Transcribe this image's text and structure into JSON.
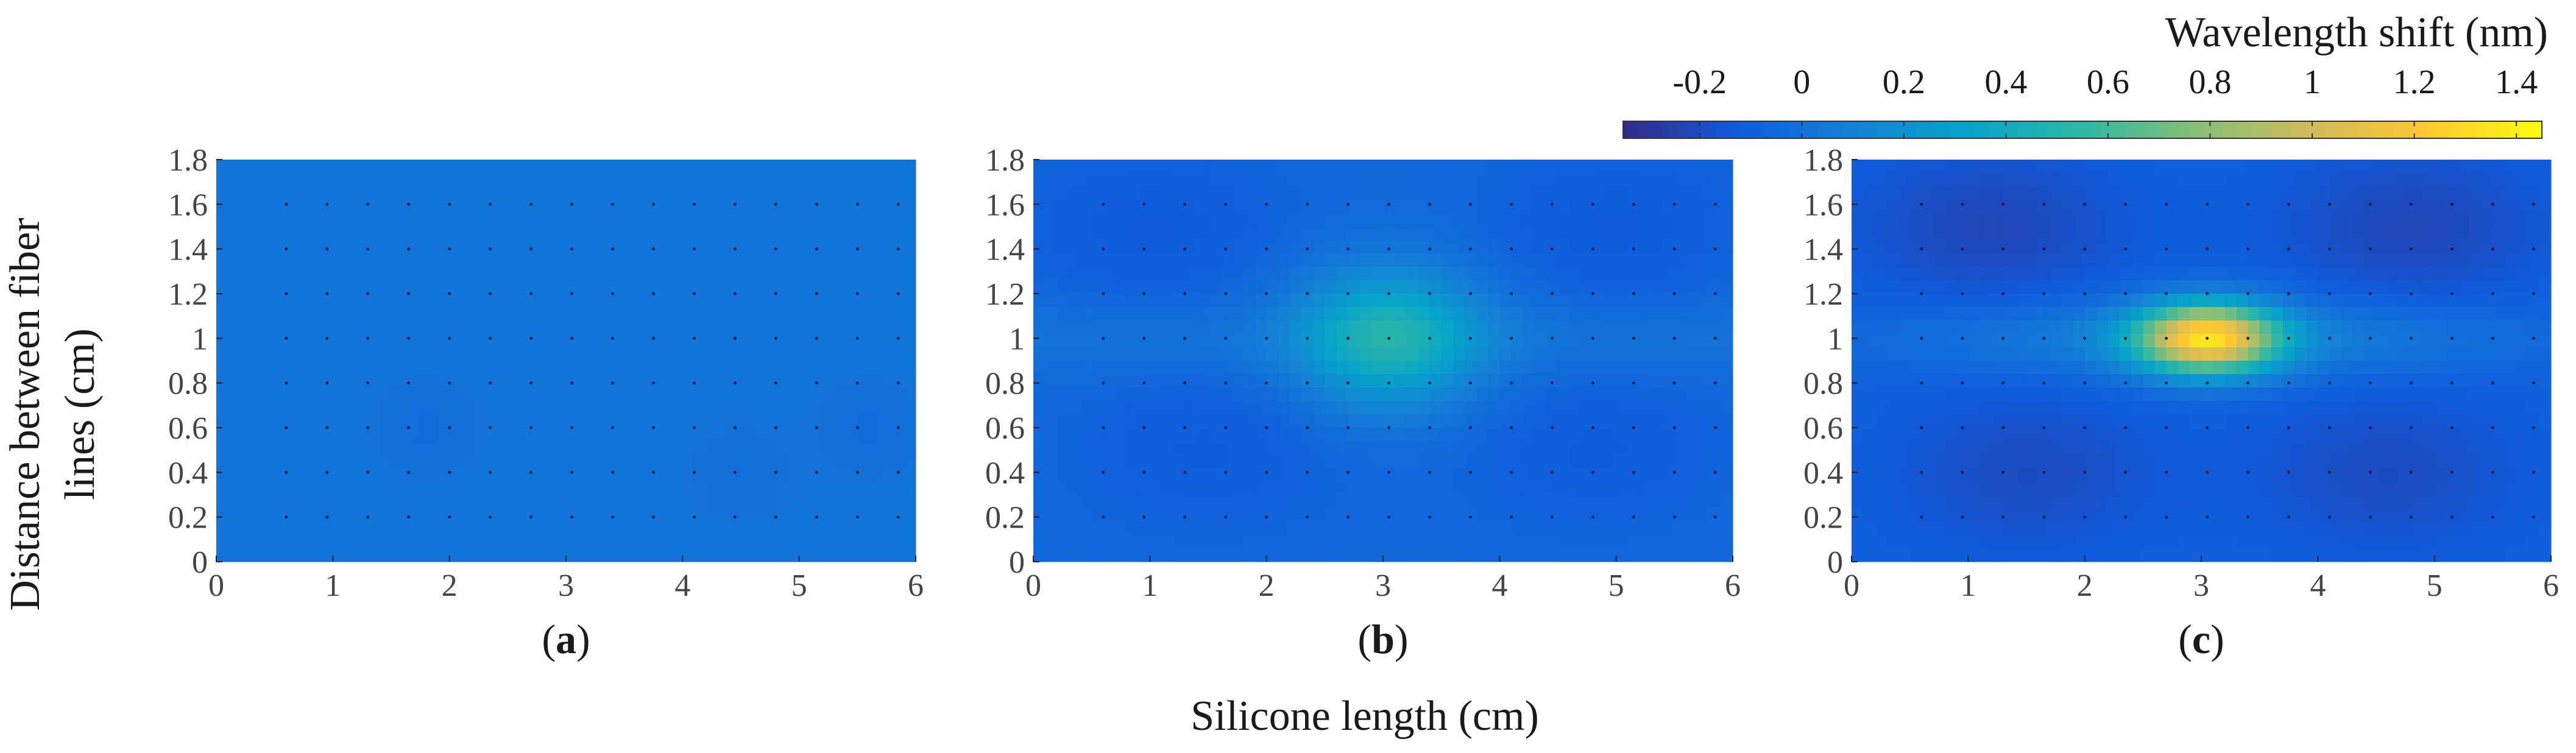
{
  "chart_data": {
    "type": "heatmap",
    "shared_xlabel": "Silicone length (cm)",
    "shared_ylabel": [
      "Distance between fiber",
      "lines (cm)"
    ],
    "colorbar": {
      "label": "Wavelength shift (nm)",
      "range": [
        -0.35,
        1.45
      ],
      "ticks": [
        -0.2,
        0,
        0.2,
        0.4,
        0.6,
        0.8,
        1,
        1.2,
        1.4
      ],
      "tick_labels": [
        "-0.2",
        "0",
        "0.2",
        "0.4",
        "0.6",
        "0.8",
        "1",
        "1.2",
        "1.4"
      ],
      "colormap": "parula",
      "stops": [
        "#352a87",
        "#0f5cdd",
        "#1481d6",
        "#06a4ca",
        "#2eb7a4",
        "#87bf77",
        "#d1bb59",
        "#fec832",
        "#f9fb0e"
      ]
    },
    "panels": [
      {
        "id": "a",
        "caption_open": "(",
        "caption_letter": "a",
        "caption_close": ")",
        "xlim": [
          0,
          6
        ],
        "ylim": [
          0,
          1.8
        ],
        "xticks": [
          0,
          1,
          2,
          3,
          4,
          5,
          6
        ],
        "xtick_labels": [
          "0",
          "1",
          "2",
          "3",
          "4",
          "5",
          "6"
        ],
        "yticks": [
          0,
          0.2,
          0.4,
          0.6,
          0.8,
          1,
          1.2,
          1.4,
          1.6,
          1.8
        ],
        "ytick_labels": [
          "0",
          "0.2",
          "0.4",
          "0.6",
          "0.8",
          "1",
          "1.2",
          "1.4",
          "1.6",
          "1.8"
        ],
        "base": 0.02,
        "peak": {
          "x": 3.0,
          "y": 1.0,
          "amplitude": 0.0,
          "sx": 0.6,
          "sy": 0.3
        },
        "ridge": {
          "y": 1.0,
          "amplitude": 0.0,
          "sy": 0.12
        },
        "cold_spots": [
          {
            "x": 1.8,
            "y": 0.6,
            "amplitude": -0.04,
            "sx": 0.3,
            "sy": 0.15
          },
          {
            "x": 4.5,
            "y": 0.4,
            "amplitude": -0.03,
            "sx": 0.3,
            "sy": 0.15
          },
          {
            "x": 5.6,
            "y": 0.6,
            "amplitude": -0.04,
            "sx": 0.3,
            "sy": 0.15
          }
        ],
        "sensor_grid": {
          "x_start": 0.6,
          "x_end": 5.85,
          "x_step": 0.35,
          "y_values": [
            0.2,
            0.4,
            0.6,
            0.8,
            1.0,
            1.2,
            1.4,
            1.6
          ]
        }
      },
      {
        "id": "b",
        "caption_open": "(",
        "caption_letter": "b",
        "caption_close": ")",
        "xlim": [
          0,
          6
        ],
        "ylim": [
          0,
          1.8
        ],
        "xticks": [
          0,
          1,
          2,
          3,
          4,
          5,
          6
        ],
        "xtick_labels": [
          "0",
          "1",
          "2",
          "3",
          "4",
          "5",
          "6"
        ],
        "yticks": [
          0,
          0.2,
          0.4,
          0.6,
          0.8,
          1,
          1.2,
          1.4,
          1.6,
          1.8
        ],
        "ytick_labels": [
          "0",
          "0.2",
          "0.4",
          "0.6",
          "0.8",
          "1",
          "1.2",
          "1.4",
          "1.6",
          "1.8"
        ],
        "base": -0.05,
        "peak": {
          "x": 3.05,
          "y": 1.0,
          "amplitude": 0.5,
          "sx": 0.55,
          "sy": 0.22
        },
        "ridge": {
          "y": 1.0,
          "amplitude": 0.07,
          "sy": 0.12
        },
        "cold_spots": [
          {
            "x": 1.0,
            "y": 1.5,
            "amplitude": -0.08,
            "sx": 0.8,
            "sy": 0.25
          },
          {
            "x": 5.0,
            "y": 1.5,
            "amplitude": -0.08,
            "sx": 0.8,
            "sy": 0.25
          },
          {
            "x": 1.5,
            "y": 0.5,
            "amplitude": -0.07,
            "sx": 0.8,
            "sy": 0.25
          },
          {
            "x": 4.8,
            "y": 0.5,
            "amplitude": -0.07,
            "sx": 0.8,
            "sy": 0.25
          }
        ],
        "sensor_grid": {
          "x_start": 0.6,
          "x_end": 5.85,
          "x_step": 0.35,
          "y_values": [
            0.2,
            0.4,
            0.6,
            0.8,
            1.0,
            1.2,
            1.4,
            1.6
          ]
        }
      },
      {
        "id": "c",
        "caption_open": "(",
        "caption_letter": "c",
        "caption_close": ")",
        "xlim": [
          0,
          6
        ],
        "ylim": [
          0,
          1.8
        ],
        "xticks": [
          0,
          1,
          2,
          3,
          4,
          5,
          6
        ],
        "xtick_labels": [
          "0",
          "1",
          "2",
          "3",
          "4",
          "5",
          "6"
        ],
        "yticks": [
          0,
          0.2,
          0.4,
          0.6,
          0.8,
          1,
          1.2,
          1.4,
          1.6,
          1.8
        ],
        "ytick_labels": [
          "0",
          "0.2",
          "0.4",
          "0.6",
          "0.8",
          "1",
          "1.2",
          "1.4",
          "1.6",
          "1.8"
        ],
        "base": -0.1,
        "peak": {
          "x": 3.05,
          "y": 1.0,
          "amplitude": 1.25,
          "sx": 0.42,
          "sy": 0.11
        },
        "ridge": {
          "y": 1.0,
          "amplitude": 0.22,
          "sy": 0.12,
          "sx": 1.8
        },
        "cold_spots": [
          {
            "x": 1.2,
            "y": 1.5,
            "amplitude": -0.12,
            "sx": 0.8,
            "sy": 0.25
          },
          {
            "x": 4.8,
            "y": 1.5,
            "amplitude": -0.12,
            "sx": 0.8,
            "sy": 0.25
          },
          {
            "x": 1.5,
            "y": 0.4,
            "amplitude": -0.1,
            "sx": 0.8,
            "sy": 0.25
          },
          {
            "x": 4.6,
            "y": 0.4,
            "amplitude": -0.1,
            "sx": 0.8,
            "sy": 0.25
          }
        ],
        "sensor_grid": {
          "x_start": 0.6,
          "x_end": 5.85,
          "x_step": 0.35,
          "y_values": [
            0.2,
            0.4,
            0.6,
            0.8,
            1.0,
            1.2,
            1.4,
            1.6
          ]
        }
      }
    ]
  }
}
